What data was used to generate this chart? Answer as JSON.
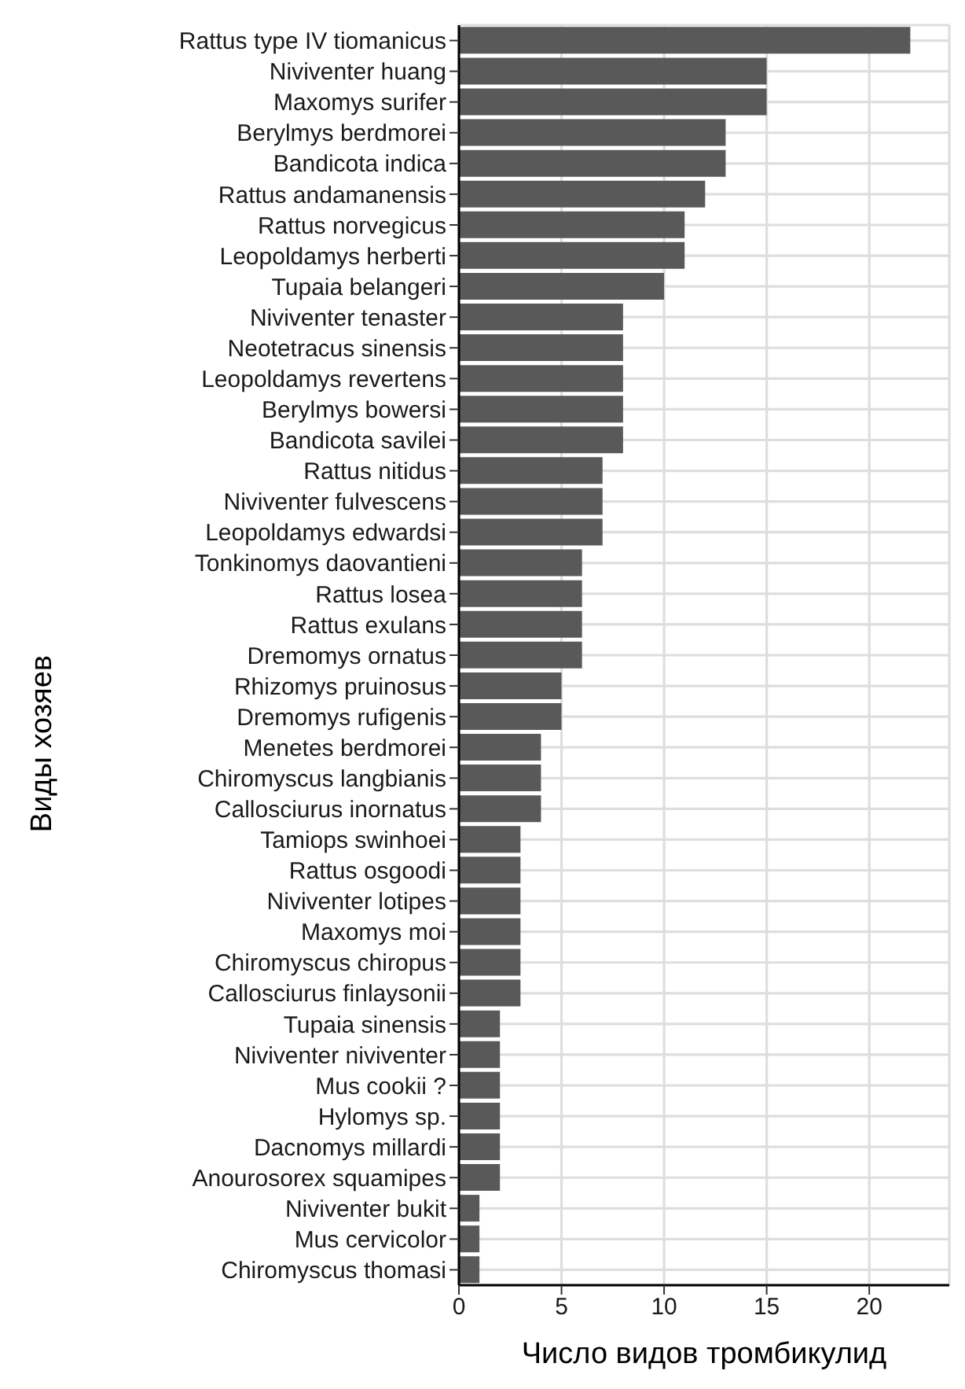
{
  "chart_data": {
    "type": "bar",
    "orientation": "horizontal",
    "xlabel": "Число видов тромбикулид",
    "ylabel": "Виды хозяев",
    "categories": [
      "Rattus type IV tiomanicus",
      "Niviventer huang",
      "Maxomys surifer",
      "Berylmys berdmorei",
      "Bandicota indica",
      "Rattus andamanensis",
      "Rattus norvegicus",
      "Leopoldamys herberti",
      "Tupaia belangeri",
      "Niviventer tenaster",
      "Neotetracus sinensis",
      "Leopoldamys revertens",
      "Berylmys bowersi",
      "Bandicota savilei",
      "Rattus nitidus",
      "Niviventer fulvescens",
      "Leopoldamys edwardsi",
      "Tonkinomys daovantieni",
      "Rattus losea",
      "Rattus exulans",
      "Dremomys ornatus",
      "Rhizomys pruinosus",
      "Dremomys rufigenis",
      "Menetes berdmorei",
      "Chiromyscus langbianis",
      "Callosciurus inornatus",
      "Tamiops swinhoei",
      "Rattus osgoodi",
      "Niviventer lotipes",
      "Maxomys moi",
      "Chiromyscus chiropus",
      "Callosciurus finlaysonii",
      "Tupaia sinensis",
      "Niviventer niviventer",
      "Mus cookii ?",
      "Hylomys sp.",
      "Dacnomys millardi",
      "Anourosorex squamipes",
      "Niviventer bukit",
      "Mus cervicolor",
      "Chiromyscus thomasi"
    ],
    "values": [
      22,
      15,
      15,
      13,
      13,
      12,
      11,
      11,
      10,
      8,
      8,
      8,
      8,
      8,
      7,
      7,
      7,
      6,
      6,
      6,
      6,
      5,
      5,
      4,
      4,
      4,
      3,
      3,
      3,
      3,
      3,
      3,
      2,
      2,
      2,
      2,
      2,
      2,
      1,
      1,
      1
    ],
    "color": "#595959",
    "xlim": [
      0,
      23.9
    ],
    "xticks": [
      0,
      5,
      10,
      15,
      20
    ],
    "grid": true
  }
}
